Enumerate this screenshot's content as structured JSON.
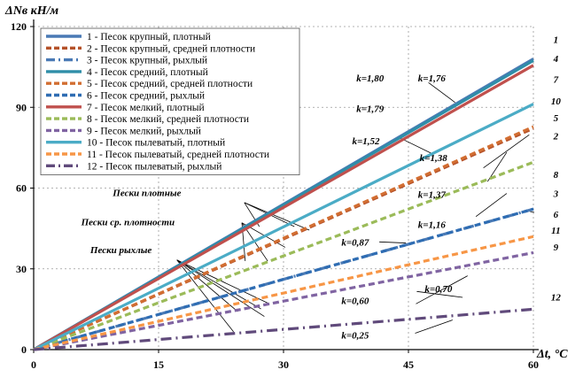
{
  "chart_data": {
    "type": "line",
    "ylabel": "ΔNв кН/м",
    "xlabel": "Δt, °C",
    "xlim": [
      0,
      60
    ],
    "ylim": [
      0,
      120
    ],
    "xticks": [
      0,
      15,
      30,
      45,
      60
    ],
    "yticks": [
      0,
      30,
      60,
      90,
      120
    ],
    "grid": true,
    "legend_position": "top-left",
    "x": [
      0,
      60
    ],
    "series": [
      {
        "id": "1",
        "name": "1 - Песок крупный, плотный",
        "k": "k=1,80",
        "values": [
          0,
          108
        ],
        "color": "#4a7ab5",
        "style": "solid"
      },
      {
        "id": "2",
        "name": "2 - Песок крупный, средней плотности",
        "k": "k=1,37",
        "values": [
          0,
          82.2
        ],
        "color": "#b5522a",
        "style": "dash"
      },
      {
        "id": "3",
        "name": "3 - Песок крупный, рыхлый",
        "k": "k=0,87",
        "values": [
          0,
          52.2
        ],
        "color": "#4a7ab5",
        "style": "dashdot"
      },
      {
        "id": "4",
        "name": "4 - Песок средний, плотный",
        "k": "k=1,79",
        "values": [
          0,
          107.4
        ],
        "color": "#2f8ea8",
        "style": "solid"
      },
      {
        "id": "5",
        "name": "5 - Песок средний, средней плотности",
        "k": "k=1,38",
        "values": [
          0,
          82.8
        ],
        "color": "#d26e32",
        "style": "dash"
      },
      {
        "id": "6",
        "name": "6 - Песок средний, рыхлый",
        "k": "k=0,87",
        "values": [
          0,
          52.2
        ],
        "color": "#2f6db3",
        "style": "dash"
      },
      {
        "id": "7",
        "name": "7 - Песок мелкий, плотный",
        "k": "k=1,76",
        "values": [
          0,
          105.6
        ],
        "color": "#c0504d",
        "style": "solid"
      },
      {
        "id": "8",
        "name": "8 - Песок мелкий, средней плотности",
        "k": "k=1,16",
        "values": [
          0,
          69.6
        ],
        "color": "#9bbb59",
        "style": "dash"
      },
      {
        "id": "9",
        "name": "9 - Песок мелкий, рыхлый",
        "k": "k=0,60",
        "values": [
          0,
          36
        ],
        "color": "#8064a2",
        "style": "dash"
      },
      {
        "id": "10",
        "name": "10 - Песок пылеватый, плотный",
        "k": "k=1,52",
        "values": [
          0,
          91.2
        ],
        "color": "#4bacc6",
        "style": "solid"
      },
      {
        "id": "11",
        "name": "11 - Песок пылеватый, средней плотности",
        "k": "k=0,70",
        "values": [
          0,
          42
        ],
        "color": "#f79646",
        "style": "dash"
      },
      {
        "id": "12",
        "name": "12 - Песок пылеватый, рыхлый",
        "k": "k=0,25",
        "values": [
          0,
          15
        ],
        "color": "#604a7b",
        "style": "dashdot"
      }
    ],
    "k_labels": [
      {
        "text": "k=1,80",
        "x": 40.4,
        "y": 99.6
      },
      {
        "text": "k=1,76",
        "x": 47.8,
        "y": 99.6
      },
      {
        "text": "k=1,79",
        "x": 40.4,
        "y": 88.3
      },
      {
        "text": "k=1,52",
        "x": 39.9,
        "y": 76.2
      },
      {
        "text": "k=1,38",
        "x": 48.0,
        "y": 70.1
      },
      {
        "text": "k=1,37",
        "x": 47.8,
        "y": 56.4
      },
      {
        "text": "k=1,16",
        "x": 47.8,
        "y": 45.2
      },
      {
        "text": "k=0,87",
        "x": 38.6,
        "y": 38.6
      },
      {
        "text": "k=0,70",
        "x": 48.6,
        "y": 21.3
      },
      {
        "text": "k=0,60",
        "x": 38.6,
        "y": 17.0
      },
      {
        "text": "k=0,25",
        "x": 38.6,
        "y": 4.1
      }
    ],
    "end_labels": [
      {
        "text": "1",
        "x": 62.7,
        "y": 114.0
      },
      {
        "text": "4",
        "x": 62.7,
        "y": 106.9
      },
      {
        "text": "7",
        "x": 62.7,
        "y": 99.2
      },
      {
        "text": "10",
        "x": 62.7,
        "y": 91.1
      },
      {
        "text": "5",
        "x": 62.7,
        "y": 84.9
      },
      {
        "text": "2",
        "x": 62.7,
        "y": 78.1
      },
      {
        "text": "8",
        "x": 62.7,
        "y": 63.8
      },
      {
        "text": "3",
        "x": 62.7,
        "y": 56.7
      },
      {
        "text": "6",
        "x": 62.7,
        "y": 49.0
      },
      {
        "text": "11",
        "x": 62.7,
        "y": 43.1
      },
      {
        "text": "9",
        "x": 62.7,
        "y": 36.9
      },
      {
        "text": "12",
        "x": 62.7,
        "y": 18.2
      }
    ],
    "group_labels": [
      {
        "text": "Пески плотные",
        "x": 9.5,
        "y": 57.0
      },
      {
        "text": "Пески ср. плотности",
        "x": 5.7,
        "y": 46.2
      },
      {
        "text": "Пески рыхлые",
        "x": 6.8,
        "y": 35.9
      }
    ]
  }
}
